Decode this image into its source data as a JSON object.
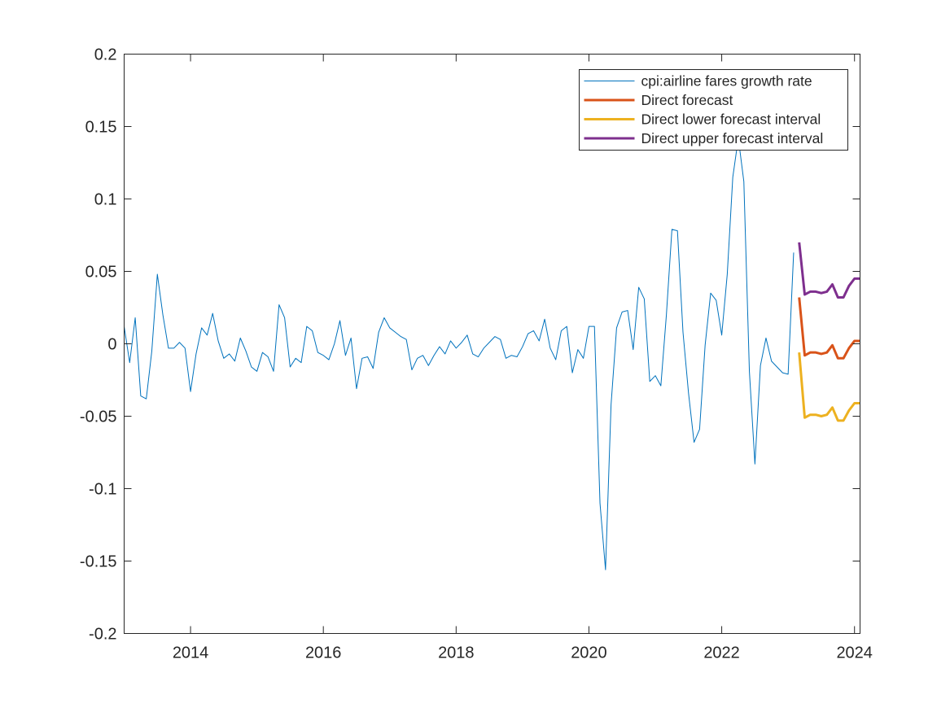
{
  "chart_data": {
    "type": "line",
    "xlim": [
      "2013-01",
      "2024-02"
    ],
    "ylim": [
      -0.2,
      0.2
    ],
    "x_ticks": [
      "2014",
      "2016",
      "2018",
      "2020",
      "2022",
      "2024"
    ],
    "y_ticks": [
      "-0.2",
      "-0.15",
      "-0.1",
      "-0.05",
      "0",
      "0.05",
      "0.1",
      "0.15",
      "0.2"
    ],
    "grid": false,
    "legend_position": "top-right",
    "series": [
      {
        "name": "cpi:airline fares growth rate",
        "color": "#0072BD",
        "start": "2013-01",
        "frequency": "monthly",
        "values": [
          0.012,
          -0.013,
          0.018,
          -0.036,
          -0.038,
          -0.005,
          0.048,
          0.02,
          -0.003,
          -0.003,
          0.001,
          -0.003,
          -0.033,
          -0.007,
          0.011,
          0.006,
          0.021,
          0.002,
          -0.01,
          -0.007,
          -0.012,
          0.004,
          -0.005,
          -0.016,
          -0.019,
          -0.006,
          -0.009,
          -0.019,
          0.027,
          0.018,
          -0.016,
          -0.01,
          -0.013,
          0.012,
          0.009,
          -0.006,
          -0.008,
          -0.011,
          0.0,
          0.016,
          -0.008,
          0.004,
          -0.031,
          -0.01,
          -0.009,
          -0.017,
          0.008,
          0.018,
          0.011,
          0.008,
          0.005,
          0.003,
          -0.018,
          -0.01,
          -0.008,
          -0.015,
          -0.008,
          -0.002,
          -0.007,
          0.002,
          -0.003,
          0.001,
          0.006,
          -0.007,
          -0.009,
          -0.003,
          0.001,
          0.005,
          0.003,
          -0.01,
          -0.008,
          -0.009,
          -0.002,
          0.007,
          0.009,
          0.002,
          0.017,
          -0.003,
          -0.011,
          0.009,
          0.012,
          -0.02,
          -0.004,
          -0.01,
          0.012,
          0.012,
          -0.11,
          -0.156,
          -0.042,
          0.011,
          0.022,
          0.023,
          -0.004,
          0.039,
          0.031,
          -0.026,
          -0.022,
          -0.029,
          0.02,
          0.079,
          0.078,
          0.008,
          -0.034,
          -0.068,
          -0.059,
          -0.001,
          0.035,
          0.03,
          0.006,
          0.048,
          0.115,
          0.142,
          0.112,
          -0.019,
          -0.083,
          -0.015,
          0.004,
          -0.012,
          -0.016,
          -0.02,
          -0.021,
          0.063
        ]
      },
      {
        "name": "Direct forecast",
        "color": "#D95319",
        "start": "2023-03",
        "frequency": "monthly",
        "values": [
          0.032,
          -0.008,
          -0.006,
          -0.006,
          -0.007,
          -0.006,
          -0.001,
          -0.01,
          -0.01,
          -0.003,
          0.002,
          0.002
        ]
      },
      {
        "name": "Direct lower forecast interval",
        "color": "#EDB120",
        "start": "2023-03",
        "frequency": "monthly",
        "values": [
          -0.006,
          -0.051,
          -0.049,
          -0.049,
          -0.05,
          -0.049,
          -0.044,
          -0.053,
          -0.053,
          -0.046,
          -0.041,
          -0.041
        ]
      },
      {
        "name": "Direct upper forecast interval",
        "color": "#7E2F8E",
        "start": "2023-03",
        "frequency": "monthly",
        "values": [
          0.07,
          0.034,
          0.036,
          0.036,
          0.035,
          0.036,
          0.041,
          0.032,
          0.032,
          0.04,
          0.045,
          0.045
        ]
      }
    ]
  }
}
